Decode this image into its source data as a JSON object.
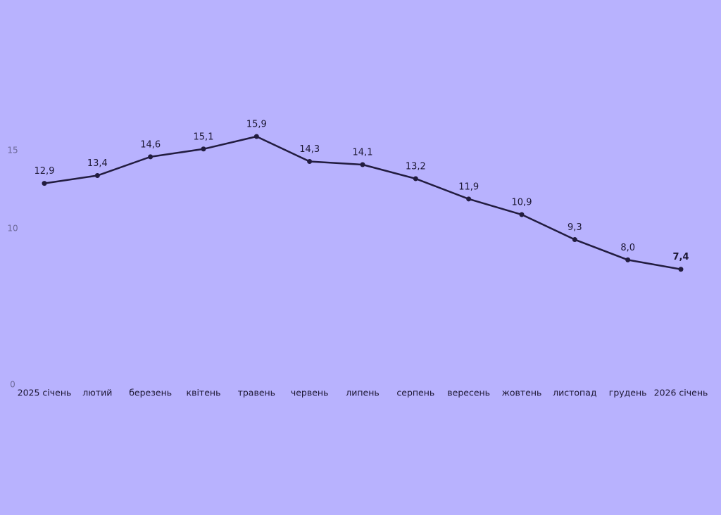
{
  "chart_data": {
    "type": "line",
    "categories": [
      "2025 січень",
      "лютий",
      "березень",
      "квітень",
      "травень",
      "червень",
      "липень",
      "серпень",
      "вересень",
      "жовтень",
      "листопад",
      "грудень",
      "2026 січень"
    ],
    "series": [
      {
        "color": "#221c3f",
        "values": [
          12.9,
          13.4,
          14.6,
          15.1,
          15.9,
          14.3,
          14.1,
          13.2,
          11.9,
          10.9,
          9.3,
          8.0,
          7.4
        ],
        "value_labels": [
          "12,9",
          "13,4",
          "14,6",
          "15,1",
          "15,9",
          "14,3",
          "14,1",
          "13,2",
          "11,9",
          "10,9",
          "9,3",
          "8,0",
          "7,4"
        ]
      }
    ],
    "ylim": [
      0,
      20
    ],
    "yticks": [
      0,
      10,
      15
    ],
    "grid": false
  }
}
